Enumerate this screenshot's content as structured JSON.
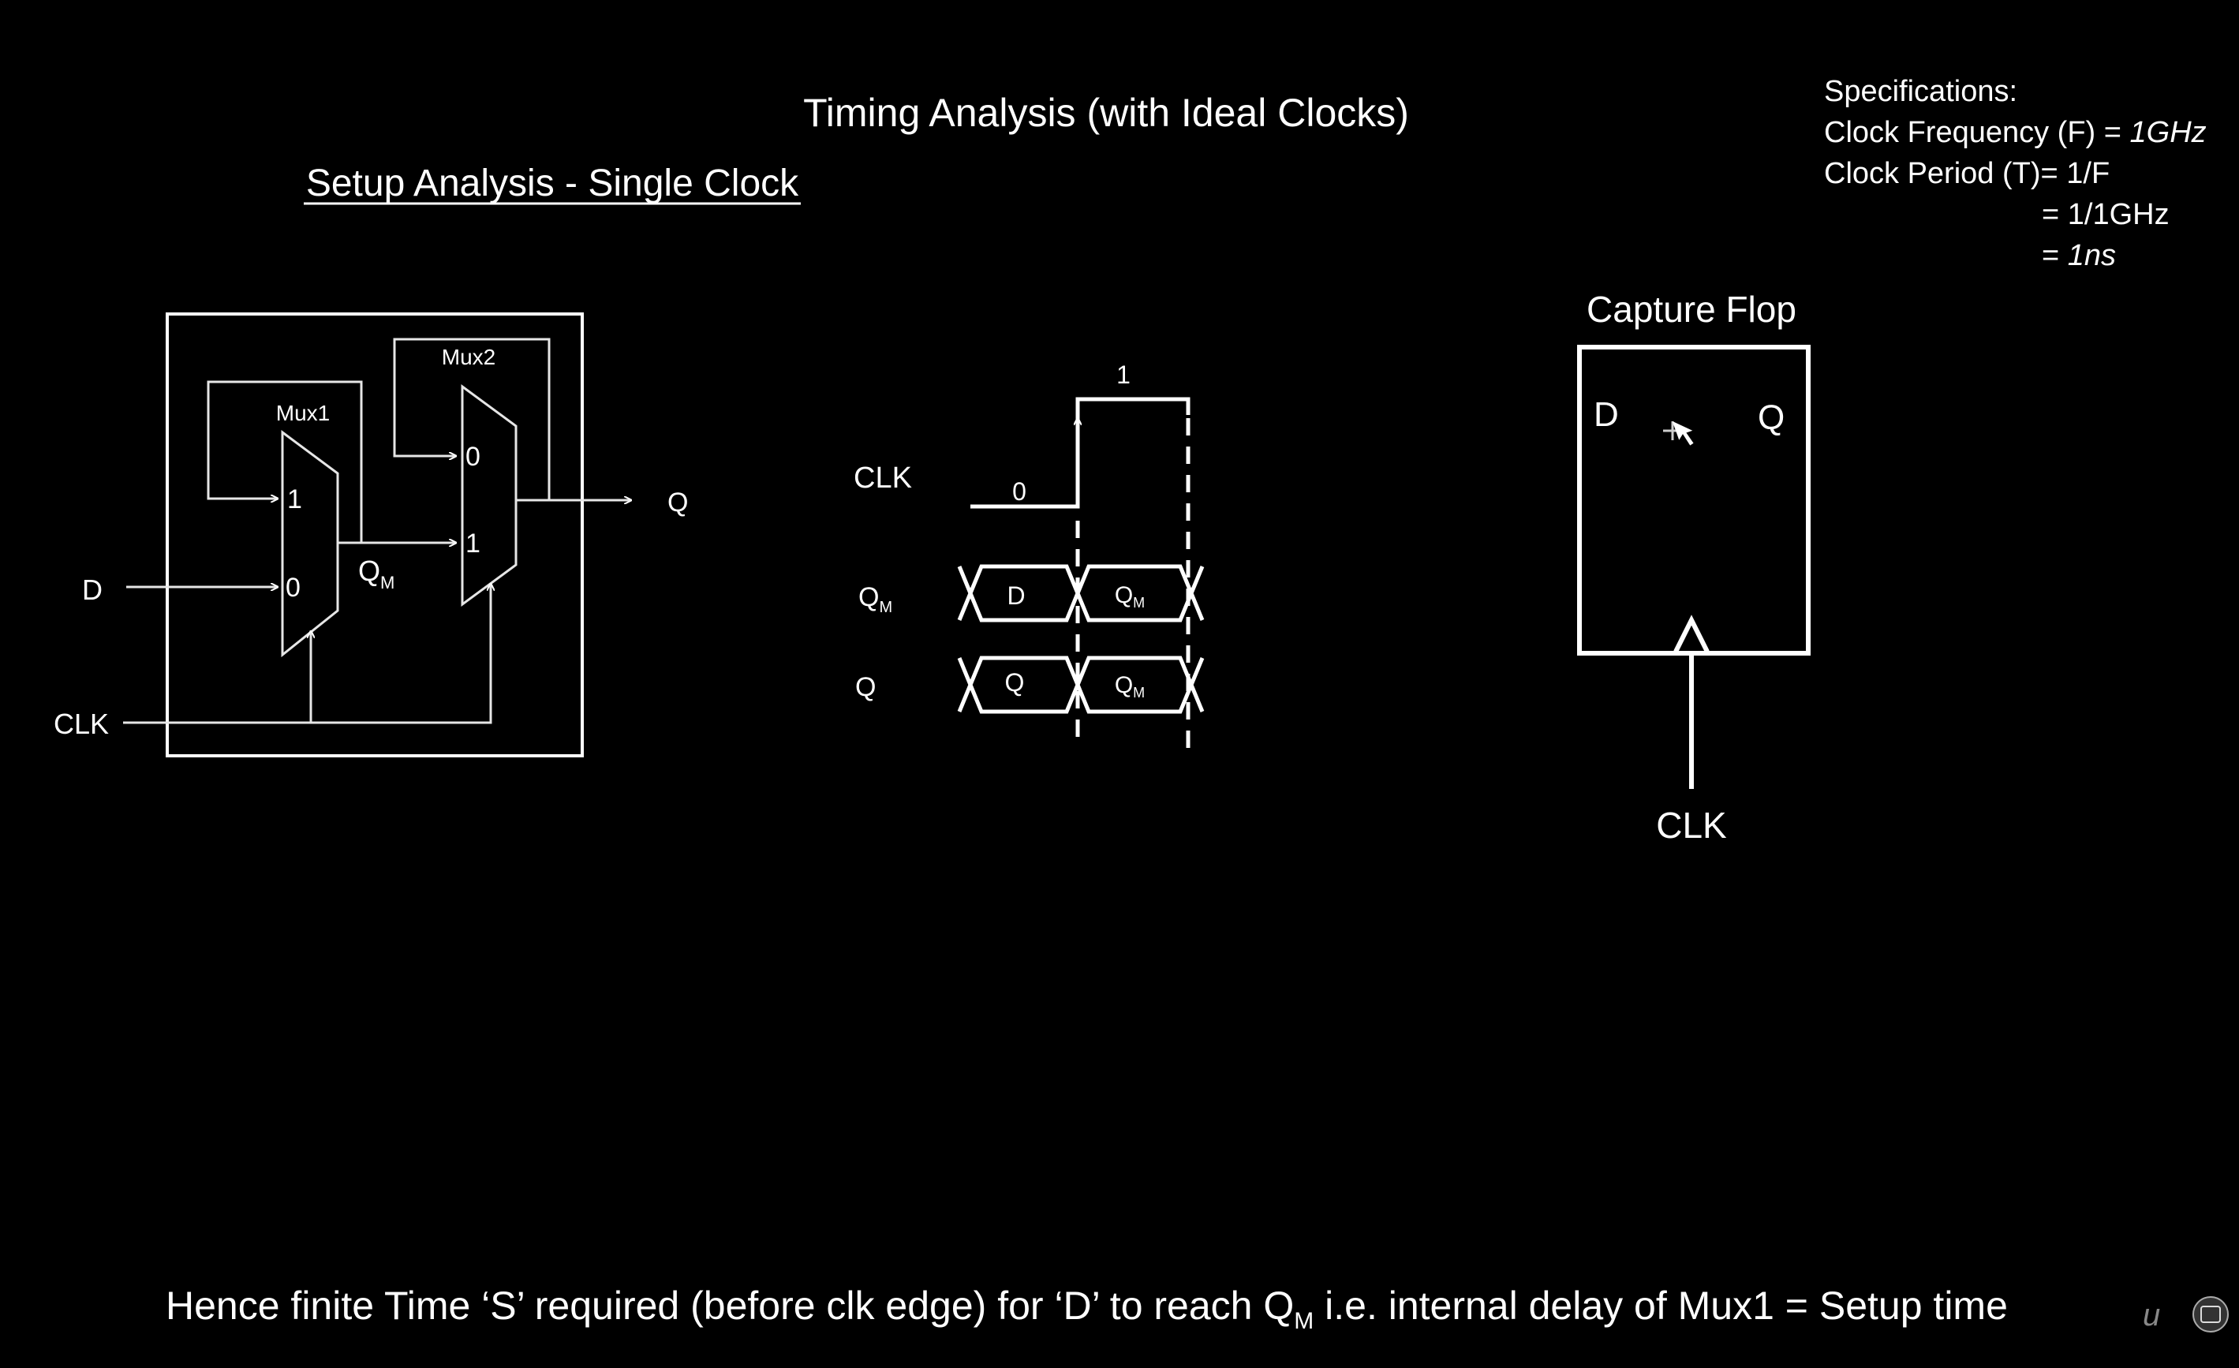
{
  "title": "Timing Analysis (with Ideal Clocks)",
  "subtitle": "Setup Analysis - Single Clock",
  "specifications": {
    "heading": "Specifications:",
    "line1_label": "Clock Frequency (F) = ",
    "line1_value": "1GHz",
    "line2": "Clock Period (T)= 1/F",
    "line3": "= 1/1GHz",
    "line4_prefix": "= ",
    "line4_value": "1ns"
  },
  "latch_diagram": {
    "mux1_label": "Mux1",
    "mux2_label": "Mux2",
    "mux1_in_top": "1",
    "mux1_in_bottom": "0",
    "mux2_in_top": "0",
    "mux2_in_bottom": "1",
    "input_d": "D",
    "input_clk": "CLK",
    "output_q": "Q",
    "internal_node": "Q",
    "internal_node_sub": "M"
  },
  "waveform": {
    "clk_label": "CLK",
    "clk_low": "0",
    "clk_high": "1",
    "qm_label": "Q",
    "qm_sub": "M",
    "q_label": "Q",
    "qm_seg1": "D",
    "qm_seg2": "Q",
    "qm_seg2_sub": "M",
    "q_seg1": "Q",
    "q_seg2": "Q",
    "q_seg2_sub": "M"
  },
  "capture_flop": {
    "title": "Capture Flop",
    "pin_d": "D",
    "pin_q": "Q",
    "pin_clk": "CLK"
  },
  "footer": {
    "pre": "Hence finite Time ‘S’ required (before clk edge) for ‘D’ to reach Q",
    "sub": "M",
    "post": " i.e. internal delay of Mux1 = Setup time"
  },
  "watermark": "u"
}
